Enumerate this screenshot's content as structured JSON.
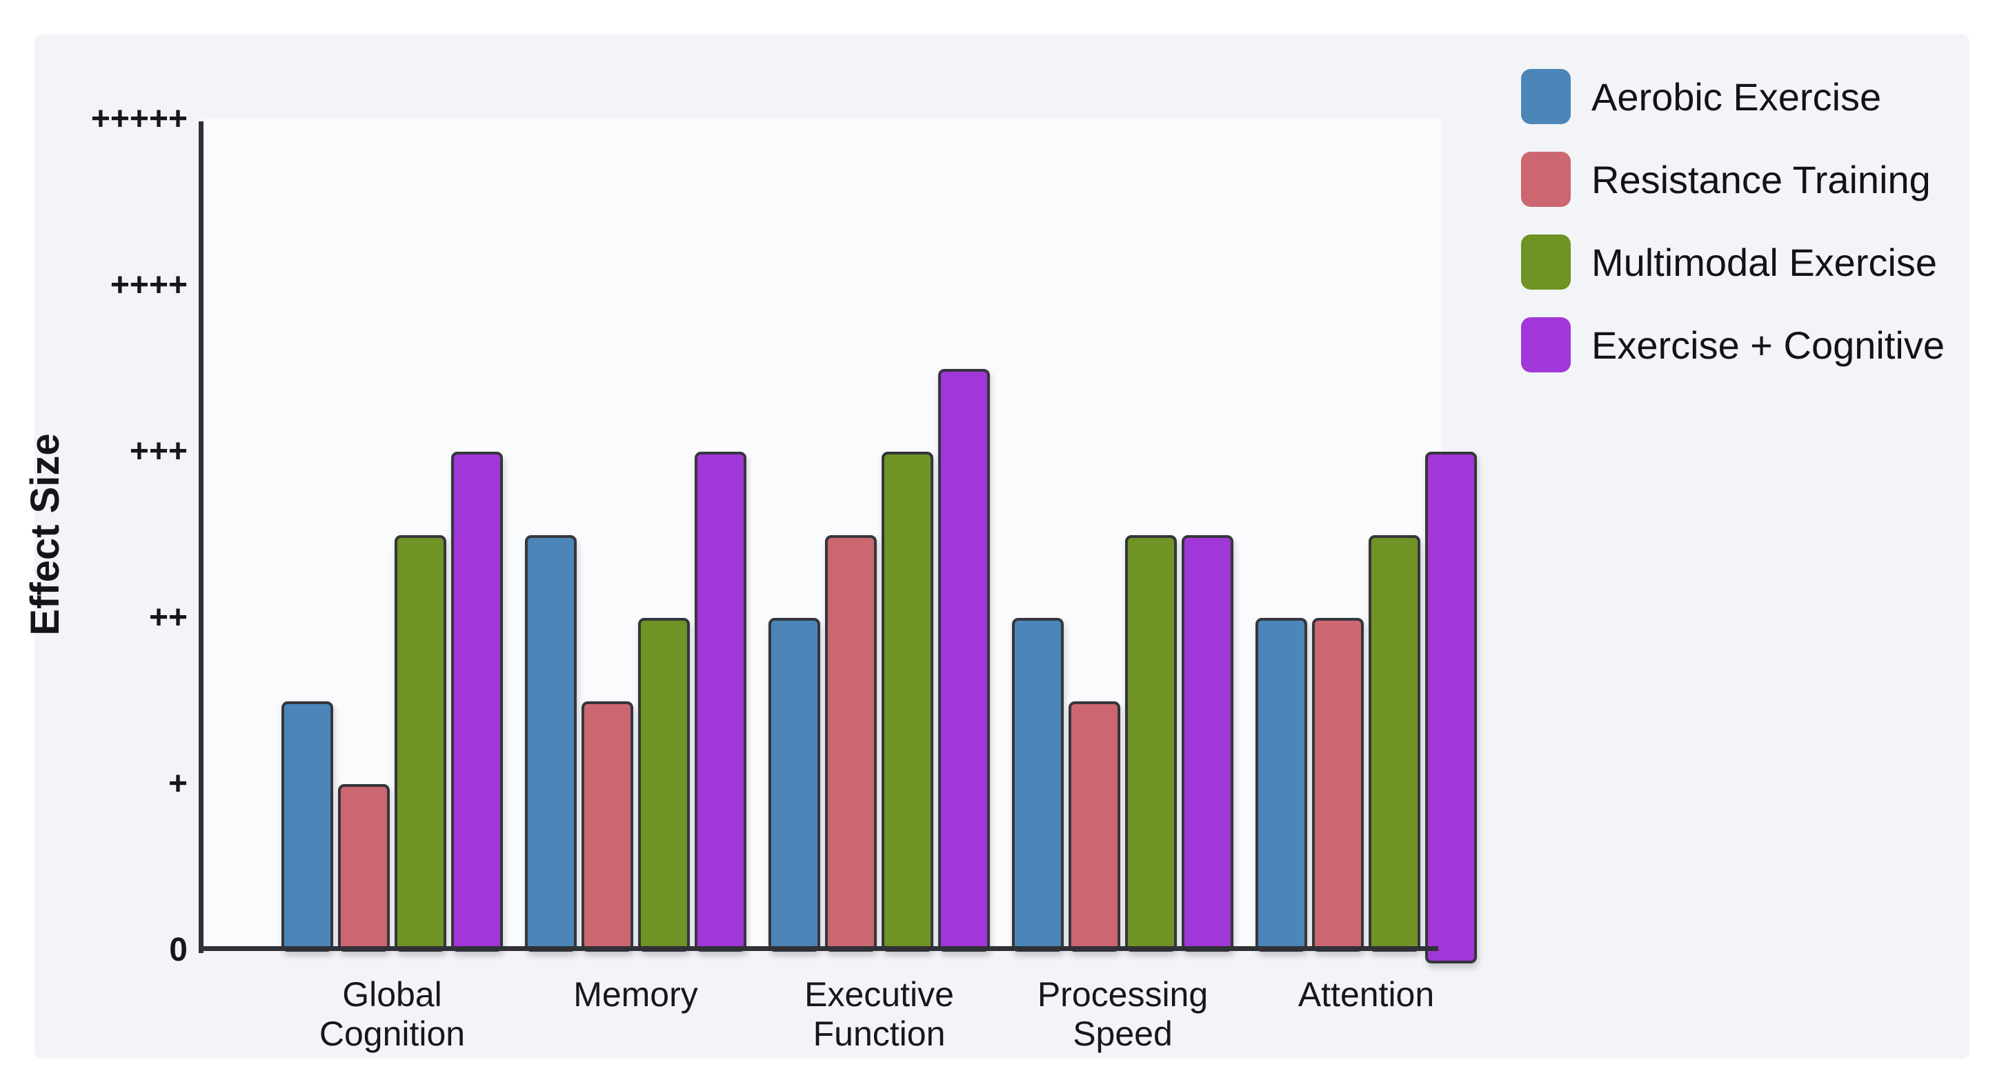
{
  "chart_data": {
    "type": "bar",
    "title": "",
    "xlabel": "",
    "ylabel": "Effect Size",
    "categories": [
      "Global Cognition",
      "Memory",
      "Executive Function",
      "Processing Speed",
      "Attention"
    ],
    "category_label_lines": [
      [
        "Global",
        "Cognition"
      ],
      [
        "Memory"
      ],
      [
        "Executive",
        "Function"
      ],
      [
        "Processing",
        "Speed"
      ],
      [
        "Attention"
      ]
    ],
    "y_tick_labels": [
      "0",
      "+",
      "++",
      "+++",
      "++++",
      "+++++"
    ],
    "y_tick_values": [
      0,
      1,
      2,
      3,
      4,
      5
    ],
    "ylim": [
      0,
      5.0
    ],
    "grid": false,
    "legend_position": "top-right",
    "series": [
      {
        "name": "Aerobic Exercise",
        "color": "#4c86b8",
        "values": [
          1.5,
          2.5,
          2.0,
          2.0,
          2.0
        ]
      },
      {
        "name": "Resistance Training",
        "color": "#cc6671",
        "values": [
          1.0,
          1.5,
          2.5,
          1.5,
          2.0
        ]
      },
      {
        "name": "Multimodal Exercise",
        "color": "#6f9324",
        "values": [
          2.5,
          2.0,
          3.0,
          2.5,
          2.5
        ]
      },
      {
        "name": "Exercise + Cognitive",
        "color": "#a137d8",
        "values": [
          3.0,
          3.0,
          3.5,
          2.5,
          3.0
        ]
      }
    ],
    "colors": {
      "panel_background": "#f2f4f7",
      "plot_background": "#fafbfd",
      "axis": "#303136",
      "bar_edge": "#35363c",
      "text": "#16171c"
    }
  }
}
